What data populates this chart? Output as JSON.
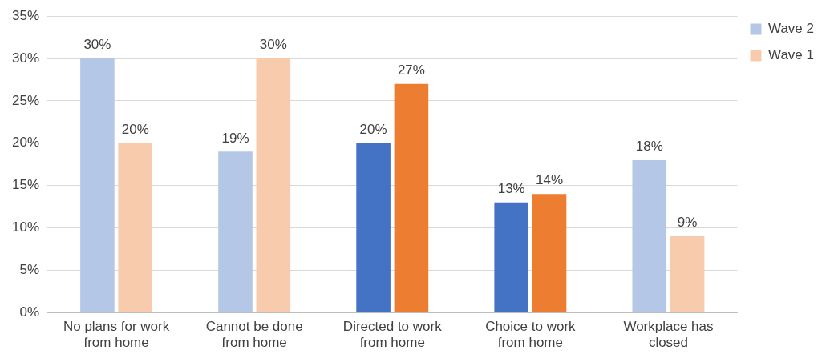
{
  "chart_data": {
    "type": "bar",
    "categories": [
      "No plans for work from home",
      "Cannot be done from home",
      "Directed to work from home",
      "Choice to work from home",
      "Workplace has closed"
    ],
    "series": [
      {
        "name": "Wave 2",
        "color": "#b4c7e7",
        "colors": [
          "#b4c7e7",
          "#b4c7e7",
          "#4472c4",
          "#4472c4",
          "#b4c7e7"
        ],
        "values": [
          30,
          19,
          20,
          13,
          18
        ],
        "value_labels": [
          "30%",
          "19%",
          "20%",
          "13%",
          "18%"
        ]
      },
      {
        "name": "Wave 1",
        "color": "#f8cbad",
        "colors": [
          "#f8cbad",
          "#f8cbad",
          "#ed7d31",
          "#ed7d31",
          "#f8cbad"
        ],
        "values": [
          20,
          30,
          27,
          14,
          9
        ],
        "value_labels": [
          "20%",
          "30%",
          "27%",
          "14%",
          "9%"
        ]
      }
    ],
    "ylim": [
      0,
      35
    ],
    "yticks": [
      {
        "value": 0,
        "label": "0%"
      },
      {
        "value": 5,
        "label": "5%"
      },
      {
        "value": 10,
        "label": "10%"
      },
      {
        "value": 15,
        "label": "15%"
      },
      {
        "value": 20,
        "label": "20%"
      },
      {
        "value": 25,
        "label": "25%"
      },
      {
        "value": 30,
        "label": "30%"
      },
      {
        "value": 35,
        "label": "35%"
      }
    ],
    "grid": "y",
    "legend": "top right"
  }
}
